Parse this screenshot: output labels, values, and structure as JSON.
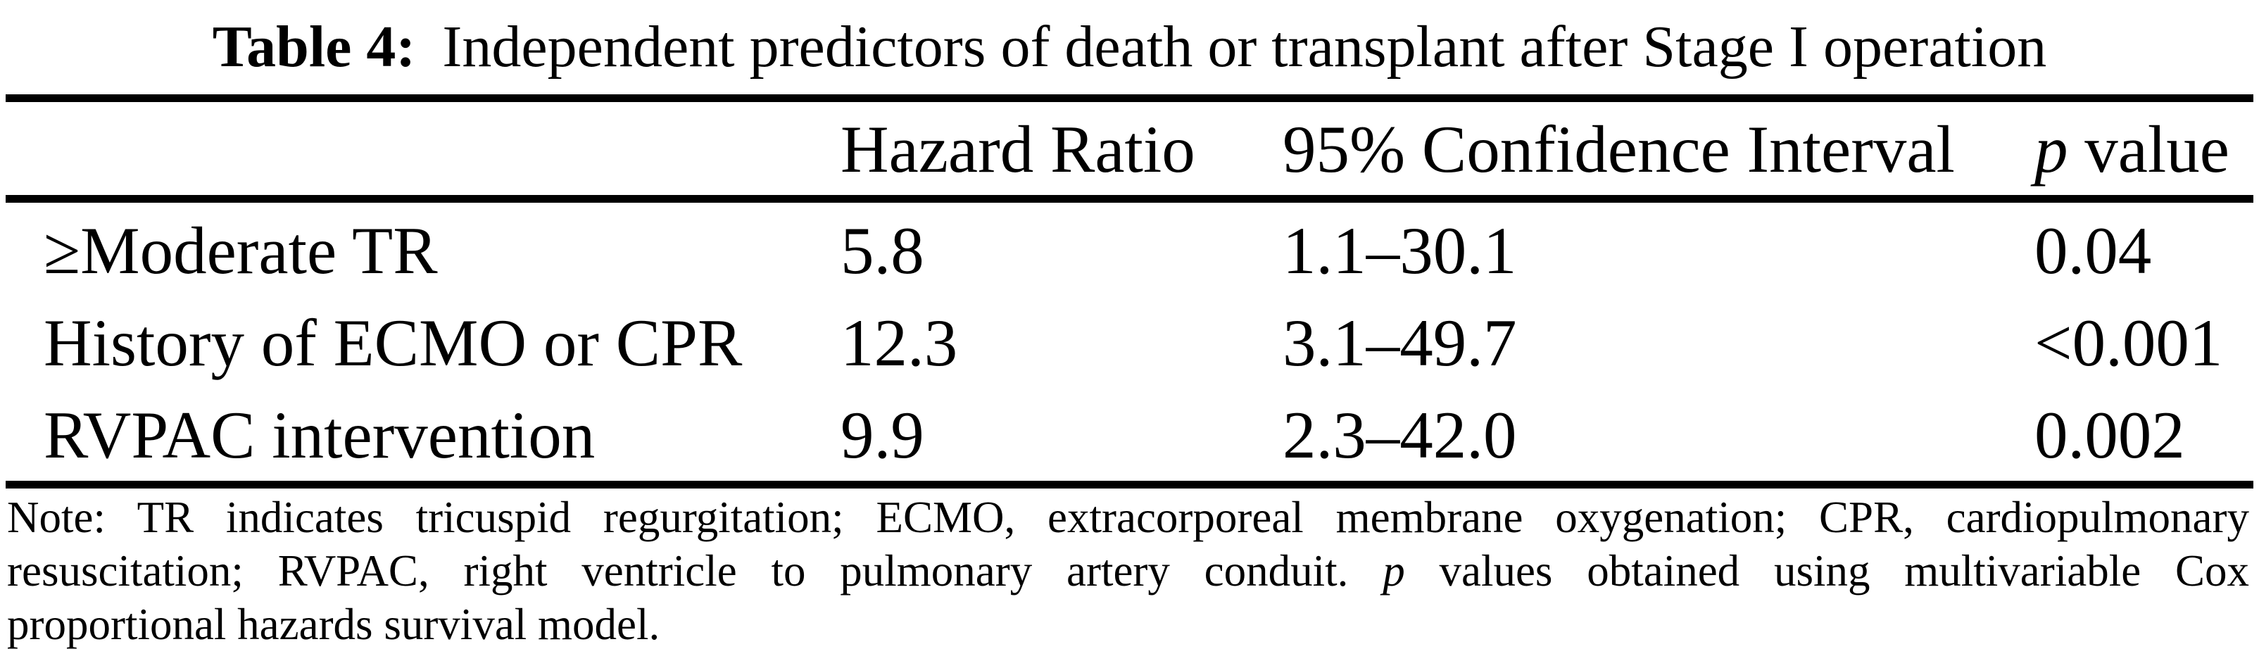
{
  "colors": {
    "text": "#000000",
    "background": "#ffffff",
    "rule": "#000000"
  },
  "caption": {
    "label": "Table 4:",
    "text": "Independent predictors of death or transplant after Stage I operation"
  },
  "table": {
    "columns": {
      "predictor": "",
      "hazard_ratio": "Hazard Ratio",
      "confidence_interval": "95% Confidence Interval",
      "p_value_italic": "p",
      "p_value_rest": " value"
    },
    "rows": [
      {
        "predictor": "≥Moderate TR",
        "hazard_ratio": "5.8",
        "confidence_interval": "1.1–30.1",
        "p_value": "0.04"
      },
      {
        "predictor": "History of ECMO or CPR",
        "hazard_ratio": "12.3",
        "confidence_interval": "3.1–49.7",
        "p_value": "<0.001"
      },
      {
        "predictor": "RVPAC intervention",
        "hazard_ratio": "9.9",
        "confidence_interval": "2.3–42.0",
        "p_value": "0.002"
      }
    ]
  },
  "note": {
    "line1": "Note: TR indicates tricuspid regurgitation; ECMO, extracorporeal membrane oxygenation; CPR, cardiopulmonary",
    "line2_pre": "resuscitation; RVPAC, right ventricle to pulmonary artery conduit. ",
    "line2_p_italic": "p",
    "line2_post": " values obtained using multivariable Cox",
    "line3": "proportional hazards survival model."
  }
}
